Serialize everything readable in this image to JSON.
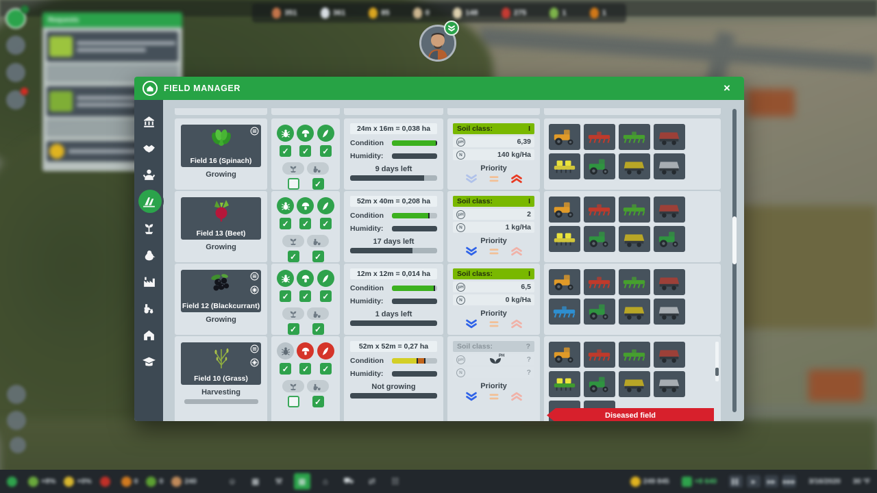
{
  "hud": {
    "top_resources": [
      {
        "icon": "egg-brown",
        "color": "#c2744a",
        "value": "351"
      },
      {
        "icon": "milk",
        "color": "#d7dde2",
        "value": "361"
      },
      {
        "icon": "honey",
        "color": "#d9a520",
        "value": "85"
      },
      {
        "icon": "grain",
        "color": "#cbb58f",
        "value": "0"
      },
      {
        "icon": "egg-white",
        "color": "#dccfae",
        "value": "148"
      },
      {
        "icon": "meat",
        "color": "#c43b33",
        "value": "275"
      },
      {
        "icon": "herb",
        "color": "#7db34a",
        "value": "1"
      },
      {
        "icon": "juice",
        "color": "#d07818",
        "value": "1"
      }
    ],
    "notifications_title": "Requests",
    "bottom_crops": [
      {
        "icon": "eco",
        "color": "#2fa24c",
        "value": ""
      },
      {
        "icon": "cucumber",
        "color": "#6aa83c",
        "value": "+8%"
      },
      {
        "icon": "corn",
        "color": "#d8b62e",
        "value": "+0%"
      },
      {
        "icon": "tomato",
        "color": "#c03028",
        "value": ""
      },
      {
        "icon": "pumpkin",
        "color": "#d07a20",
        "value": "0"
      },
      {
        "icon": "lettuce",
        "color": "#5ca032",
        "value": "0"
      },
      {
        "icon": "workers",
        "color": "#c08a5a",
        "value": "240"
      }
    ],
    "bottom_tools": [
      {
        "icon": "staff",
        "active": false
      },
      {
        "icon": "fields",
        "active": false
      },
      {
        "icon": "wrench",
        "active": false
      },
      {
        "icon": "field-manager",
        "active": true
      },
      {
        "icon": "buildings",
        "active": false
      },
      {
        "icon": "vehicles",
        "active": false
      },
      {
        "icon": "logistics",
        "active": false
      },
      {
        "icon": "stats",
        "active": false
      }
    ],
    "money": "249 845",
    "income": "+8 640",
    "controls": [
      "pause",
      "play",
      "ff",
      "fff"
    ],
    "date": "3/16/2020",
    "weather": "30 °F"
  },
  "modal": {
    "title": "FIELD MANAGER",
    "close": "×",
    "banner": "Diseased field",
    "labels": {
      "condition": "Condition",
      "humidity": "Humidity:",
      "soil_class": "Soil class:",
      "ph_icon": "pH",
      "n_icon": "N",
      "priority": "Priority"
    },
    "sidebar_items": [
      "town-hall",
      "contracts",
      "staff",
      "fields",
      "crops",
      "animals",
      "production",
      "machines",
      "farm-buildings",
      "training"
    ],
    "fields": [
      {
        "name": "Field 16 (Spinach)",
        "crop": "spinach",
        "status": "Growing",
        "badges": [
          "rows"
        ],
        "size": "24m x 16m = 0,038 ha",
        "condition": {
          "segments": [
            {
              "pct": 97,
              "color": "#3cb11f"
            }
          ],
          "markers": [
            97
          ]
        },
        "humidity": {
          "segments": [
            {
              "pct": 100,
              "color": "#3e4a52"
            }
          ]
        },
        "time_label": "9 days left",
        "time": {
          "segments": [
            {
              "pct": 85,
              "color": "#3e4a52"
            }
          ]
        },
        "soil_class": "I",
        "ph": "6,39",
        "n": "140 kg/Ha",
        "soil_known": true,
        "priority": "high",
        "sprays": [
          {
            "icon": "bug",
            "state": "ok",
            "checked": true
          },
          {
            "icon": "fungi",
            "state": "ok",
            "checked": true
          },
          {
            "icon": "weeds",
            "state": "ok",
            "checked": true
          }
        ],
        "autos": [
          {
            "icon": "fertilize",
            "checked": false
          },
          {
            "icon": "machines",
            "checked": true
          }
        ],
        "equip": [
          "tractor",
          "plow",
          "cultivator",
          "trailerRed",
          "seederYellow",
          "mower",
          "sprayer",
          "trailerGray"
        ]
      },
      {
        "name": "Field 13 (Beet)",
        "crop": "beet",
        "status": "Growing",
        "badges": [],
        "size": "52m x 40m = 0,208 ha",
        "condition": {
          "segments": [
            {
              "pct": 80,
              "color": "#3cb11f"
            }
          ],
          "markers": [
            80
          ]
        },
        "humidity": {
          "segments": [
            {
              "pct": 100,
              "color": "#3e4a52"
            }
          ]
        },
        "time_label": "17 days left",
        "time": {
          "segments": [
            {
              "pct": 72,
              "color": "#3e4a52"
            }
          ]
        },
        "soil_class": "I",
        "ph": "2",
        "n": "1 kg/Ha",
        "soil_known": true,
        "priority": "low",
        "sprays": [
          {
            "icon": "bug",
            "state": "ok",
            "checked": true
          },
          {
            "icon": "fungi",
            "state": "ok",
            "checked": true
          },
          {
            "icon": "weeds",
            "state": "ok",
            "checked": true
          }
        ],
        "autos": [
          {
            "icon": "fertilize",
            "checked": true
          },
          {
            "icon": "machines",
            "checked": true
          }
        ],
        "equip": [
          "tractor",
          "plow",
          "cultivator",
          "trailerRed",
          "seederYellow",
          "mower",
          "sprayer",
          "harvester"
        ]
      },
      {
        "name": "Field 12 (Blackcurrant)",
        "crop": "blackcurrant",
        "status": "Growing",
        "badges": [
          "rows",
          "star"
        ],
        "size": "12m x 12m = 0,014 ha",
        "condition": {
          "segments": [
            {
              "pct": 92,
              "color": "#3cb11f"
            }
          ],
          "markers": [
            92
          ]
        },
        "humidity": {
          "segments": [
            {
              "pct": 100,
              "color": "#3e4a52"
            }
          ]
        },
        "time_label": "1 days left",
        "time": {
          "segments": [
            {
              "pct": 100,
              "color": "#3e4a52"
            }
          ]
        },
        "soil_class": "I",
        "ph": "6,5",
        "n": "0 kg/Ha",
        "soil_known": true,
        "priority": "low",
        "sprays": [
          {
            "icon": "bug",
            "state": "ok",
            "checked": true
          },
          {
            "icon": "fungi",
            "state": "ok",
            "checked": true
          },
          {
            "icon": "weeds",
            "state": "ok",
            "checked": true
          }
        ],
        "autos": [
          {
            "icon": "fertilize",
            "checked": true
          },
          {
            "icon": "machines",
            "checked": true
          }
        ],
        "equip": [
          "tractor",
          "plow",
          "cultivator",
          "trailerRed",
          "planterBlue",
          "mower",
          "sprayer",
          "trailerGray"
        ]
      },
      {
        "name": "Field 10 (Grass)",
        "crop": "grass",
        "status": "Harvesting",
        "status_progress": true,
        "badges": [
          "rows",
          "star"
        ],
        "size": "52m x 52m = 0,27 ha",
        "condition": {
          "segments": [
            {
              "pct": 55,
              "color": "#d3cf26"
            },
            {
              "pct": 16,
              "color": "#c2661c"
            }
          ],
          "markers": [
            55,
            71
          ]
        },
        "humidity": {
          "segments": [
            {
              "pct": 100,
              "color": "#3e4a52"
            }
          ]
        },
        "time_label": "Not growing",
        "time": {
          "segments": [
            {
              "pct": 100,
              "color": "#3e4a52"
            }
          ]
        },
        "soil_class": "?",
        "ph": "?",
        "n": "?",
        "soil_known": false,
        "priority": "low",
        "sprays": [
          {
            "icon": "bug",
            "state": "off",
            "checked": true
          },
          {
            "icon": "fungi",
            "state": "alert",
            "checked": true
          },
          {
            "icon": "weeds",
            "state": "alert",
            "checked": true
          }
        ],
        "autos": [
          {
            "icon": "fertilize",
            "checked": false
          },
          {
            "icon": "machines",
            "checked": true
          }
        ],
        "equip": [
          "tractor",
          "plow",
          "cultivator",
          "trailerRed",
          "seederGreen",
          "mower",
          "sprayer",
          "trailerGray",
          "planterBlue",
          "planterBlue2"
        ]
      }
    ]
  }
}
